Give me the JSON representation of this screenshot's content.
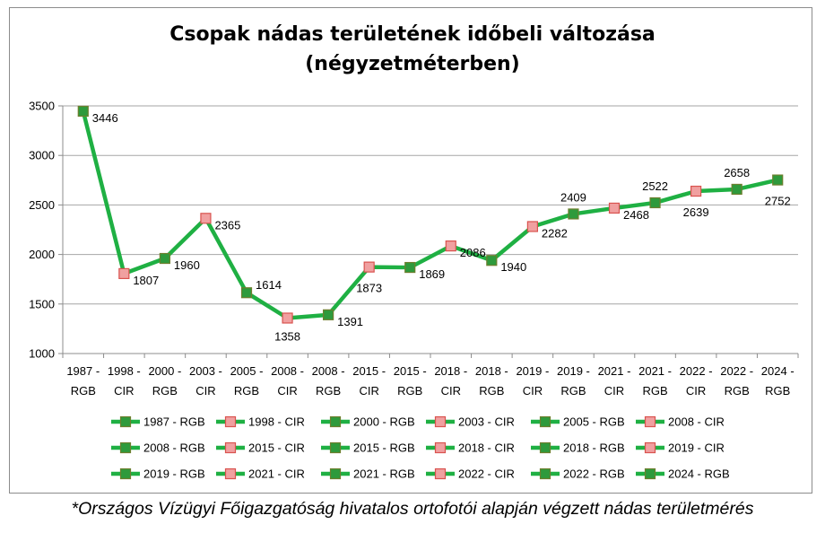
{
  "chart_data": {
    "type": "line",
    "title_line1": "Csopak nádas területének időbeli változása",
    "title_line2": "(négyzetméterben)",
    "ylim": [
      1000,
      3500
    ],
    "yticks": [
      "1000",
      "1500",
      "2000",
      "2500",
      "3000",
      "3500"
    ],
    "grid": true,
    "legend_position": "bottom",
    "categories": [
      {
        "line1": "1987 -",
        "line2": "RGB"
      },
      {
        "line1": "1998 -",
        "line2": "CIR"
      },
      {
        "line1": "2000 -",
        "line2": "RGB"
      },
      {
        "line1": "2003 -",
        "line2": "CIR"
      },
      {
        "line1": "2005 -",
        "line2": "RGB"
      },
      {
        "line1": "2008 -",
        "line2": "CIR"
      },
      {
        "line1": "2008 -",
        "line2": "RGB"
      },
      {
        "line1": "2015 -",
        "line2": "CIR"
      },
      {
        "line1": "2015 -",
        "line2": "RGB"
      },
      {
        "line1": "2018 -",
        "line2": "CIR"
      },
      {
        "line1": "2018 -",
        "line2": "RGB"
      },
      {
        "line1": "2019 -",
        "line2": "CIR"
      },
      {
        "line1": "2019 -",
        "line2": "RGB"
      },
      {
        "line1": "2021 -",
        "line2": "CIR"
      },
      {
        "line1": "2021 -",
        "line2": "RGB"
      },
      {
        "line1": "2022 -",
        "line2": "CIR"
      },
      {
        "line1": "2022 -",
        "line2": "RGB"
      },
      {
        "line1": "2024 -",
        "line2": "RGB"
      }
    ],
    "values": [
      3446,
      1807,
      1960,
      2365,
      1614,
      1358,
      1391,
      1873,
      1869,
      2086,
      1940,
      2282,
      2409,
      2468,
      2522,
      2639,
      2658,
      2752
    ],
    "data_labels": [
      "3446",
      "1807",
      "1960",
      "2365",
      "1614",
      "1358",
      "1391",
      "1873",
      "1869",
      "2086",
      "1940",
      "2282",
      "2409",
      "2468",
      "2522",
      "2639",
      "2658",
      "2752"
    ],
    "marker_types": [
      "RGB",
      "CIR",
      "RGB",
      "CIR",
      "RGB",
      "CIR",
      "RGB",
      "CIR",
      "RGB",
      "CIR",
      "RGB",
      "CIR",
      "RGB",
      "CIR",
      "RGB",
      "CIR",
      "RGB",
      "RGB"
    ],
    "legend": [
      "1987 - RGB",
      "1998 - CIR",
      "2000 - RGB",
      "2003 - CIR",
      "2005 - RGB",
      "2008 - CIR",
      "2008 - RGB",
      "2015 - CIR",
      "2015 - RGB",
      "2018 - CIR",
      "2018 - RGB",
      "2019 - CIR",
      "2019 - RGB",
      "2021 - CIR",
      "2021 - RGB",
      "2022 - CIR",
      "2022 - RGB",
      "2024 - RGB"
    ]
  },
  "colors": {
    "line": "#1fb043",
    "rgb_marker_fill": "#2e9a3c",
    "rgb_marker_stroke": "#6d7f2e",
    "cir_marker_fill": "#f0a0a0",
    "cir_marker_stroke": "#d9534f",
    "grid": "#a6a6a6",
    "axis": "#8c8c8c"
  },
  "footnote": "*Országos Vízügyi Főigazgatóság hivatalos ortofotói alapján végzett nádas területmérés"
}
